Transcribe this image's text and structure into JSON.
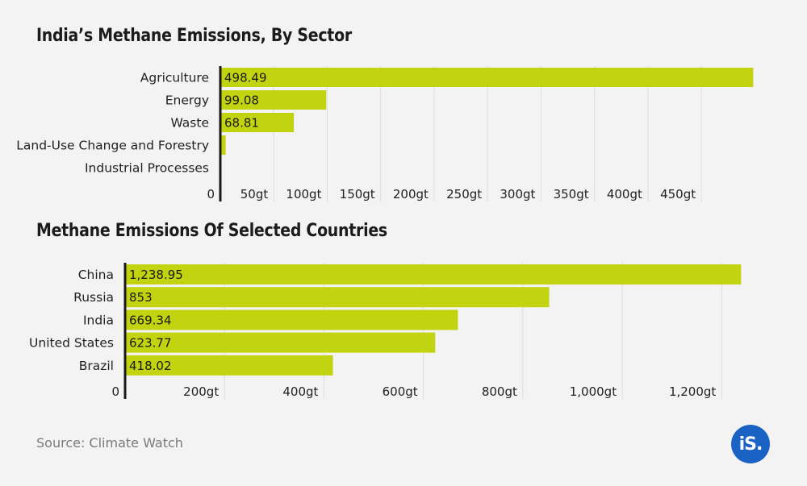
{
  "chart_data": [
    {
      "type": "bar",
      "orientation": "horizontal",
      "title": "India’s Methane Emissions, By Sector",
      "categories": [
        "Agriculture",
        "Energy",
        "Waste",
        "Land-Use Change and Forestry",
        "Industrial Processes"
      ],
      "values": [
        498.49,
        99.08,
        68.81,
        5,
        0
      ],
      "value_labels": [
        "498.49",
        "99.08",
        "68.81",
        "",
        ""
      ],
      "ticks": [
        0,
        50,
        100,
        150,
        200,
        250,
        300,
        350,
        400,
        450
      ],
      "tick_labels": [
        "0",
        "50gt",
        "100gt",
        "150gt",
        "200gt",
        "250gt",
        "300gt",
        "350gt",
        "400gt",
        "450gt"
      ],
      "xlim": [
        0,
        500
      ],
      "grid": true,
      "bar_color": "#c2d30f"
    },
    {
      "type": "bar",
      "orientation": "horizontal",
      "title": "Methane Emissions Of Selected Countries",
      "categories": [
        "China",
        "Russia",
        "India",
        "United States",
        "Brazil"
      ],
      "values": [
        1238.95,
        853,
        669.34,
        623.77,
        418.02
      ],
      "value_labels": [
        "1,238.95",
        "853",
        "669.34",
        "623.77",
        "418.02"
      ],
      "ticks": [
        0,
        200,
        400,
        600,
        800,
        1000,
        1200
      ],
      "tick_labels": [
        "0",
        "200gt",
        "400gt",
        "600gt",
        "800gt",
        "1,000gt",
        "1,200gt"
      ],
      "xlim": [
        0,
        1250
      ],
      "grid": true,
      "bar_color": "#c2d30f"
    }
  ],
  "source": "Source: Climate Watch",
  "logo": {
    "text": "iS.",
    "color": "#1a63c4"
  }
}
